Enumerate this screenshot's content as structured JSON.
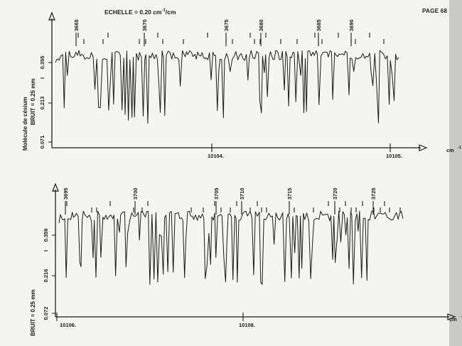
{
  "header": {
    "page": "PAGE 68",
    "scale_prefix": "ECHELLE = 0.20 cm",
    "scale_exp": "-1",
    "scale_suffix": "/cm"
  },
  "side_label_molecule": "Molécule de césium",
  "unit_label": "cm",
  "unit_exp": "-1",
  "colors": {
    "ink": "#1a1a1a",
    "paper": "#f4f4f1"
  },
  "chart_data": [
    {
      "type": "line",
      "title": "",
      "ylabel_noise": "BRUIT = 0.25 mm",
      "ylabel_intensity": "I",
      "yticks": [
        "0.355",
        "0.213",
        "0.071"
      ],
      "xlabel": "cm-1",
      "x_axis_labels": [
        "10104.",
        "10105."
      ],
      "line_labels": [
        "3665",
        "3670",
        "3675",
        "3680",
        "3685",
        "3690"
      ],
      "grid": false
    },
    {
      "type": "line",
      "title": "",
      "ylabel_noise": "BRUIT = 0.25 mm",
      "ylabel_intensity": "I",
      "yticks": [
        "0.359",
        "0.216",
        "0.072"
      ],
      "xlabel": "cm-1",
      "x_axis_labels": [
        "10106.",
        "10108."
      ],
      "line_labels": [
        "3695",
        "3700",
        "3705",
        "3710",
        "3715",
        "3720",
        "3725"
      ],
      "grid": false
    }
  ]
}
